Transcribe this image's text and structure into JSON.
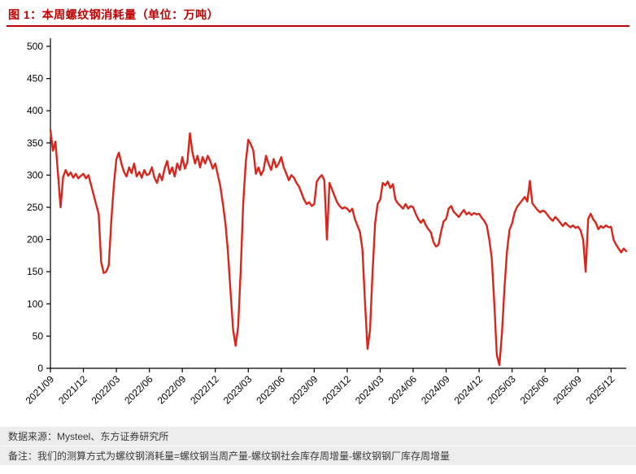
{
  "header": {
    "title": "图 1：本周螺纹钢消耗量（单位：万吨）"
  },
  "footer": {
    "source": "数据来源：Mysteel、东方证券研究所",
    "note": "备注：我们的测算方式为螺纹钢消耗量=螺纹钢当周产量-螺纹钢社会库存周增量-螺纹钢钢厂库存周增量"
  },
  "colors": {
    "accent_red": "#d9261c",
    "title_red": "#c00000",
    "axis_black": "#000000",
    "footer_bg": "#ededed",
    "footer_text": "#3a3a3a"
  },
  "chart_data": {
    "type": "line",
    "title": "本周螺纹钢消耗量（单位：万吨）",
    "y_unit": "万吨",
    "ylim": [
      0,
      500
    ],
    "ytick_step": 50,
    "grid": false,
    "legend_position": "none",
    "line_color": "#d9261c",
    "x_tick_labels": [
      "2021/09",
      "2021/12",
      "2022/03",
      "2022/06",
      "2022/09",
      "2022/12",
      "2023/03",
      "2023/06",
      "2023/09",
      "2023/12",
      "2024/03",
      "2024/06",
      "2024/09",
      "2024/12",
      "2025/03",
      "2025/06",
      "2025/09",
      "2025/12"
    ],
    "points_per_tick": 13,
    "series": [
      {
        "name": "本周螺纹钢消耗量",
        "values": [
          370,
          338,
          352,
          300,
          250,
          297,
          308,
          299,
          304,
          296,
          302,
          295,
          299,
          302,
          295,
          300,
          285,
          270,
          255,
          240,
          165,
          148,
          150,
          160,
          230,
          285,
          325,
          335,
          318,
          305,
          298,
          312,
          303,
          318,
          298,
          305,
          296,
          308,
          300,
          302,
          312,
          296,
          288,
          302,
          292,
          310,
          322,
          302,
          312,
          298,
          318,
          308,
          328,
          310,
          320,
          365,
          335,
          318,
          330,
          312,
          328,
          318,
          330,
          322,
          310,
          318,
          300,
          282,
          255,
          225,
          180,
          120,
          60,
          35,
          65,
          150,
          255,
          320,
          355,
          348,
          338,
          302,
          312,
          300,
          308,
          330,
          318,
          308,
          325,
          312,
          318,
          328,
          312,
          302,
          292,
          300,
          296,
          288,
          282,
          272,
          262,
          255,
          258,
          252,
          255,
          290,
          296,
          300,
          292,
          200,
          288,
          278,
          268,
          258,
          252,
          248,
          250,
          248,
          243,
          248,
          232,
          222,
          212,
          185,
          105,
          30,
          60,
          150,
          225,
          255,
          262,
          288,
          284,
          290,
          280,
          286,
          262,
          256,
          252,
          248,
          255,
          248,
          252,
          250,
          240,
          232,
          226,
          231,
          222,
          216,
          211,
          196,
          189,
          192,
          212,
          228,
          232,
          248,
          252,
          243,
          239,
          235,
          241,
          246,
          239,
          242,
          238,
          241,
          239,
          240,
          234,
          229,
          222,
          200,
          170,
          100,
          20,
          5,
          55,
          125,
          182,
          215,
          225,
          242,
          251,
          256,
          261,
          266,
          259,
          291,
          256,
          251,
          246,
          242,
          245,
          243,
          238,
          233,
          229,
          235,
          231,
          226,
          221,
          226,
          222,
          219,
          222,
          218,
          220,
          214,
          200,
          150,
          232,
          240,
          231,
          226,
          216,
          221,
          218,
          222,
          219,
          220,
          200,
          192,
          186,
          180,
          186,
          182
        ]
      }
    ]
  }
}
